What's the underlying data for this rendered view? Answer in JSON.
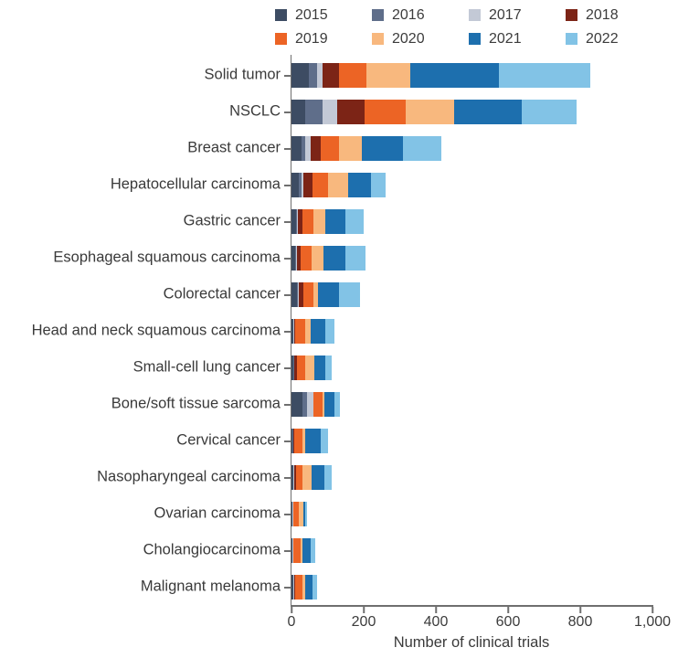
{
  "chart_data": {
    "type": "bar",
    "orientation": "horizontal",
    "stacked": true,
    "title": "",
    "xlabel": "Number of clinical trials",
    "ylabel": "",
    "xlim": [
      0,
      1000
    ],
    "x_ticks": [
      0,
      200,
      400,
      600,
      800,
      1000
    ],
    "x_tick_labels": [
      "0",
      "200",
      "400",
      "600",
      "800",
      "1,000"
    ],
    "grid": false,
    "legend_position": "top-right, 2 rows x 4 columns",
    "axis_color": "#6f6f6f",
    "text_color": "#3a3a3a",
    "categories": [
      "Solid tumor",
      "NSCLC",
      "Breast cancer",
      "Hepatocellular carcinoma",
      "Gastric cancer",
      "Esophageal squamous carcinoma",
      "Colorectal cancer",
      "Head and neck squamous carcinoma",
      "Small-cell lung cancer",
      "Bone/soft tissue sarcoma",
      "Cervical cancer",
      "Nasopharyngeal carcinoma",
      "Ovarian carcinoma",
      "Cholangiocarcinoma",
      "Malignant melanoma"
    ],
    "series": [
      {
        "name": "2015",
        "color": "#3d4c63",
        "values": [
          47,
          39,
          28,
          20,
          13,
          10,
          16,
          5,
          6,
          30,
          3,
          5,
          2,
          2,
          5
        ]
      },
      {
        "name": "2016",
        "color": "#5f6e8a",
        "values": [
          25,
          46,
          10,
          8,
          2,
          3,
          2,
          1,
          1,
          13,
          1,
          1,
          1,
          1,
          1
        ]
      },
      {
        "name": "2017",
        "color": "#c3c9d6",
        "values": [
          14,
          42,
          15,
          5,
          2,
          2,
          2,
          1,
          1,
          17,
          1,
          1,
          1,
          1,
          1
        ]
      },
      {
        "name": "2018",
        "color": "#7c2416",
        "values": [
          45,
          76,
          28,
          25,
          13,
          10,
          13,
          3,
          8,
          2,
          3,
          6,
          2,
          2,
          2
        ]
      },
      {
        "name": "2019",
        "color": "#ec6425",
        "values": [
          76,
          114,
          51,
          44,
          30,
          31,
          27,
          29,
          23,
          23,
          22,
          18,
          14,
          20,
          22
        ]
      },
      {
        "name": "2020",
        "color": "#f8b87e",
        "values": [
          122,
          135,
          63,
          55,
          34,
          34,
          13,
          13,
          25,
          5,
          8,
          25,
          14,
          4,
          8
        ]
      },
      {
        "name": "2021",
        "color": "#1d6fae",
        "values": [
          245,
          186,
          114,
          63,
          55,
          59,
          59,
          42,
          30,
          28,
          42,
          34,
          5,
          22,
          19
        ]
      },
      {
        "name": "2022",
        "color": "#82c3e6",
        "values": [
          253,
          152,
          106,
          42,
          51,
          55,
          59,
          25,
          17,
          17,
          21,
          21,
          4,
          14,
          12
        ]
      }
    ]
  }
}
